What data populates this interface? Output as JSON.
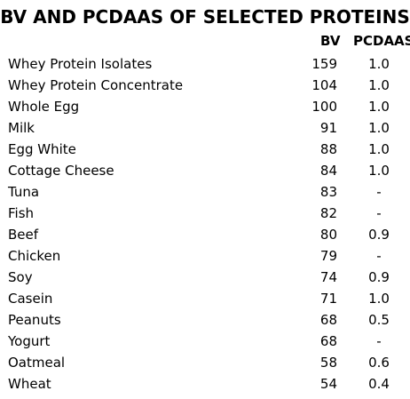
{
  "title": "BV AND PCDAAS OF SELECTED PROTEINS",
  "columns": {
    "bv": "BV",
    "pcdaas": "PCDAAS"
  },
  "rows": [
    {
      "name": "Whey Protein Isolates",
      "bv": "159",
      "pcdaas": "1.0"
    },
    {
      "name": "Whey Protein Concentrate",
      "bv": "104",
      "pcdaas": "1.0"
    },
    {
      "name": "Whole Egg",
      "bv": "100",
      "pcdaas": "1.0"
    },
    {
      "name": "Milk",
      "bv": "91",
      "pcdaas": "1.0"
    },
    {
      "name": "Egg White",
      "bv": "88",
      "pcdaas": "1.0"
    },
    {
      "name": "Cottage Cheese",
      "bv": "84",
      "pcdaas": "1.0"
    },
    {
      "name": "Tuna",
      "bv": "83",
      "pcdaas": "-"
    },
    {
      "name": "Fish",
      "bv": "82",
      "pcdaas": "-"
    },
    {
      "name": "Beef",
      "bv": "80",
      "pcdaas": "0.9"
    },
    {
      "name": "Chicken",
      "bv": "79",
      "pcdaas": "-"
    },
    {
      "name": "Soy",
      "bv": "74",
      "pcdaas": "0.9"
    },
    {
      "name": "Casein",
      "bv": "71",
      "pcdaas": "1.0"
    },
    {
      "name": "Peanuts",
      "bv": "68",
      "pcdaas": "0.5"
    },
    {
      "name": "Yogurt",
      "bv": "68",
      "pcdaas": "-"
    },
    {
      "name": "Oatmeal",
      "bv": "58",
      "pcdaas": "0.6"
    },
    {
      "name": "Wheat",
      "bv": "54",
      "pcdaas": "0.4"
    }
  ]
}
